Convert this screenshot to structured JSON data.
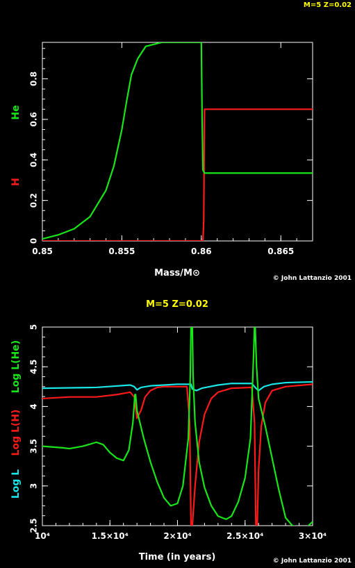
{
  "header_label": "M=5 Z=0.02",
  "colors": {
    "h": "#ff1a1a",
    "he": "#19e619",
    "l": "#19e6e6",
    "title": "#ffff00",
    "axes": "#ffffff",
    "bg": "#000000"
  },
  "chart_data": [
    {
      "type": "line",
      "title": "",
      "xlabel": "Mass/M⊙",
      "ylabel_parts": [
        "H",
        "He"
      ],
      "xlim": [
        0.85,
        0.867
      ],
      "ylim": [
        0,
        0.98
      ],
      "xticks": [
        0.85,
        0.855,
        0.86,
        0.865
      ],
      "xtick_labels": [
        "0.85",
        "0.855",
        "0.86",
        "0.865"
      ],
      "yticks": [
        0,
        0.2,
        0.4,
        0.6,
        0.8
      ],
      "ytick_labels": [
        "0",
        "0.2",
        "0.4",
        "0.6",
        "0.8"
      ],
      "credit": "© John Lattanzio 2001",
      "series": [
        {
          "name": "H",
          "color": "#ff1a1a",
          "x": [
            0.85,
            0.8601,
            0.86015,
            0.8602,
            0.867
          ],
          "y": [
            0.0,
            0.0,
            0.1,
            0.65,
            0.65
          ]
        },
        {
          "name": "He",
          "color": "#19e619",
          "x": [
            0.85,
            0.851,
            0.852,
            0.853,
            0.854,
            0.8545,
            0.855,
            0.8553,
            0.8556,
            0.856,
            0.8565,
            0.857,
            0.8575,
            0.858,
            0.86,
            0.86005,
            0.8601,
            0.8602,
            0.867
          ],
          "y": [
            0.01,
            0.03,
            0.06,
            0.12,
            0.25,
            0.37,
            0.55,
            0.69,
            0.82,
            0.9,
            0.96,
            0.97,
            0.98,
            0.98,
            0.98,
            0.6,
            0.35,
            0.335,
            0.335
          ]
        }
      ]
    },
    {
      "type": "line",
      "title": "M=5 Z=0.02",
      "xlabel": "Time (in years)",
      "ylabel_parts": [
        "Log L",
        "Log L(H)",
        "Log L(He)"
      ],
      "xlim": [
        10000,
        30000
      ],
      "ylim": [
        2.5,
        5
      ],
      "xticks": [
        10000,
        15000,
        20000,
        25000,
        30000
      ],
      "xtick_labels": [
        "10⁴",
        "1.5×10⁴",
        "2×10⁴",
        "2.5×10⁴",
        "3×10⁴"
      ],
      "yticks": [
        2.5,
        3,
        3.5,
        4,
        4.5,
        5
      ],
      "ytick_labels": [
        "2.5",
        "3",
        "3.5",
        "4",
        "4.5",
        "5"
      ],
      "credit": "© John Lattanzio 2001",
      "series": [
        {
          "name": "Log L",
          "color": "#19e6e6",
          "x": [
            10000,
            14000,
            16500,
            16800,
            17000,
            17300,
            18000,
            19000,
            20000,
            21000,
            21100,
            21400,
            21800,
            23000,
            24000,
            25500,
            25800,
            26000,
            26400,
            27000,
            28000,
            30000
          ],
          "y": [
            4.23,
            4.24,
            4.27,
            4.25,
            4.21,
            4.24,
            4.26,
            4.27,
            4.28,
            4.28,
            4.22,
            4.2,
            4.23,
            4.27,
            4.29,
            4.29,
            4.23,
            4.2,
            4.25,
            4.28,
            4.3,
            4.31
          ]
        },
        {
          "name": "Log L(H)",
          "color": "#ff1a1a",
          "x": [
            10000,
            12000,
            14000,
            15500,
            16500,
            16800,
            17000,
            17300,
            17600,
            18000,
            18500,
            19000,
            20000,
            20700,
            20900,
            21000,
            21100,
            21300,
            21600,
            22000,
            22500,
            23000,
            24000,
            25500,
            25700,
            25800,
            25900,
            26000,
            26200,
            26500,
            27000,
            28000,
            30000
          ],
          "y": [
            4.1,
            4.12,
            4.12,
            4.15,
            4.18,
            4.12,
            3.85,
            3.95,
            4.12,
            4.2,
            4.24,
            4.25,
            4.25,
            4.25,
            3.8,
            2.5,
            2.5,
            3.0,
            3.55,
            3.9,
            4.1,
            4.18,
            4.23,
            4.24,
            3.8,
            2.5,
            2.5,
            3.2,
            3.75,
            4.05,
            4.2,
            4.25,
            4.28
          ]
        },
        {
          "name": "Log L(He)",
          "color": "#19e619",
          "x": [
            10000,
            11500,
            12000,
            13000,
            14000,
            14500,
            15000,
            15500,
            16000,
            16400,
            16700,
            16850,
            16900,
            17000,
            17500,
            18000,
            18500,
            19000,
            19500,
            20000,
            20400,
            20800,
            20950,
            21000,
            21100,
            21150,
            21300,
            21600,
            22000,
            22500,
            23000,
            23600,
            24000,
            24500,
            25000,
            25400,
            25600,
            25700,
            25750,
            25850,
            26000,
            26500,
            27000,
            27500,
            28000,
            28500,
            29000,
            29500,
            30000
          ],
          "y": [
            3.5,
            3.48,
            3.47,
            3.5,
            3.55,
            3.52,
            3.42,
            3.35,
            3.32,
            3.45,
            3.8,
            4.15,
            4.15,
            3.95,
            3.6,
            3.3,
            3.05,
            2.85,
            2.75,
            2.78,
            3.0,
            3.6,
            4.4,
            5.0,
            5.0,
            4.4,
            3.8,
            3.3,
            2.98,
            2.75,
            2.62,
            2.58,
            2.62,
            2.8,
            3.1,
            3.6,
            4.5,
            5.0,
            5.0,
            4.5,
            4.1,
            3.75,
            3.35,
            2.95,
            2.6,
            2.5,
            2.48,
            2.47,
            2.55
          ]
        }
      ]
    }
  ]
}
